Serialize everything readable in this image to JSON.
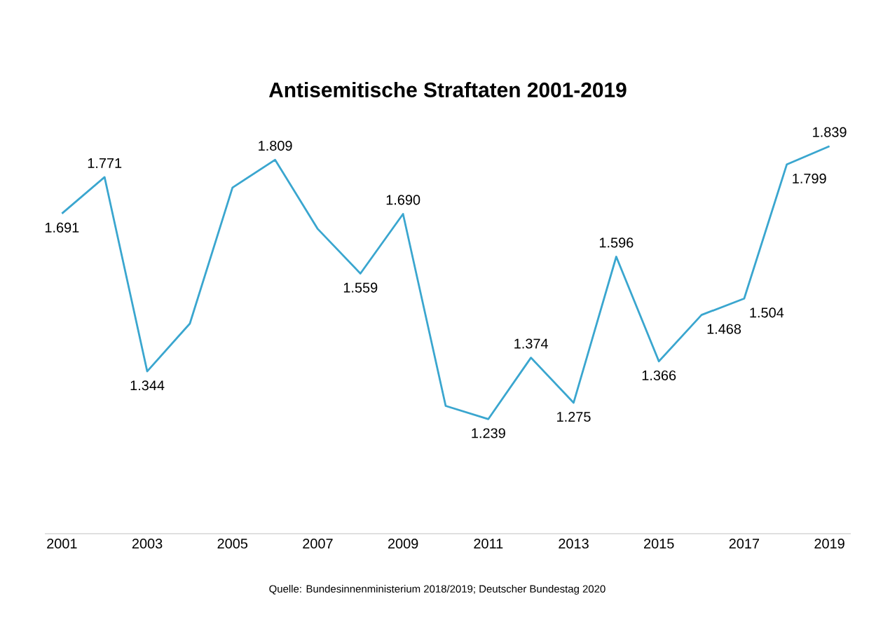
{
  "chart_data": {
    "type": "line",
    "title": "Antisemitische Straftaten 2001-2019",
    "x": [
      2001,
      2002,
      2003,
      2004,
      2005,
      2006,
      2007,
      2008,
      2009,
      2010,
      2011,
      2012,
      2013,
      2014,
      2015,
      2016,
      2017,
      2018,
      2019
    ],
    "values": [
      1691,
      1771,
      1344,
      1449,
      1748,
      1809,
      1657,
      1559,
      1690,
      1268,
      1239,
      1374,
      1275,
      1596,
      1366,
      1468,
      1504,
      1799,
      1839
    ],
    "value_labels": [
      "1.691",
      "1.771",
      "1.344",
      null,
      null,
      "1.809",
      null,
      "1.559",
      "1.690",
      null,
      "1.239",
      "1.374",
      "1.275",
      "1.596",
      "1.366",
      "1.468",
      "1.504",
      "1.799",
      "1.839"
    ],
    "color": "#3aa6cf",
    "xlim": [
      2000.6,
      2019.5
    ],
    "xticks": [
      2001,
      2003,
      2005,
      2007,
      2009,
      2011,
      2013,
      2015,
      2017,
      2019
    ],
    "annotations": [
      "Quelle: Bundesinnenministerium 2018/2019; Deutscher Bundestag 2020"
    ]
  }
}
